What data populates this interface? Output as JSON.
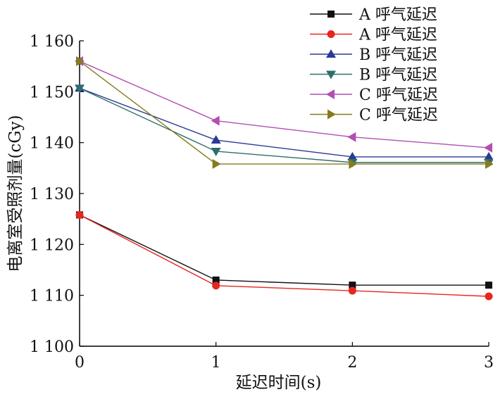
{
  "chart_data": {
    "type": "line",
    "xlabel": "延迟时间(s)",
    "ylabel": "电离室受照剂量(cGy)",
    "xlim": [
      0,
      3
    ],
    "ylim": [
      1100,
      1160
    ],
    "x_ticks": [
      0,
      1,
      2,
      3
    ],
    "x_tick_labels": [
      "0",
      "1",
      "2",
      "3"
    ],
    "y_ticks": [
      1100,
      1110,
      1120,
      1130,
      1140,
      1150,
      1160
    ],
    "y_tick_labels": [
      "1 100",
      "1 110",
      "1 120",
      "1 130",
      "1 140",
      "1 150",
      "1 160"
    ],
    "grid": false,
    "legend_position": "top-right",
    "x": [
      0,
      1,
      2,
      3
    ],
    "series": [
      {
        "name": "A 呼气延迟",
        "color": "#111111",
        "marker": "square",
        "values": [
          1125.8,
          1113.0,
          1112.0,
          1112.0
        ]
      },
      {
        "name": "A 呼气延迟",
        "color": "#e8251f",
        "marker": "circle",
        "values": [
          1125.8,
          1111.9,
          1110.9,
          1109.8
        ]
      },
      {
        "name": "B 呼气延迟",
        "color": "#2b3a96",
        "marker": "triangle-up",
        "values": [
          1150.7,
          1140.5,
          1137.2,
          1137.2
        ]
      },
      {
        "name": "B 呼气延迟",
        "color": "#2e6f6b",
        "marker": "triangle-down",
        "values": [
          1150.7,
          1138.3,
          1136.1,
          1136.1
        ]
      },
      {
        "name": "C 呼气延迟",
        "color": "#b24fb0",
        "marker": "triangle-left",
        "values": [
          1156.0,
          1144.3,
          1141.1,
          1139.0
        ]
      },
      {
        "name": "C 呼气延迟",
        "color": "#847c1e",
        "marker": "triangle-right",
        "values": [
          1156.0,
          1135.8,
          1135.8,
          1135.8
        ]
      }
    ]
  }
}
